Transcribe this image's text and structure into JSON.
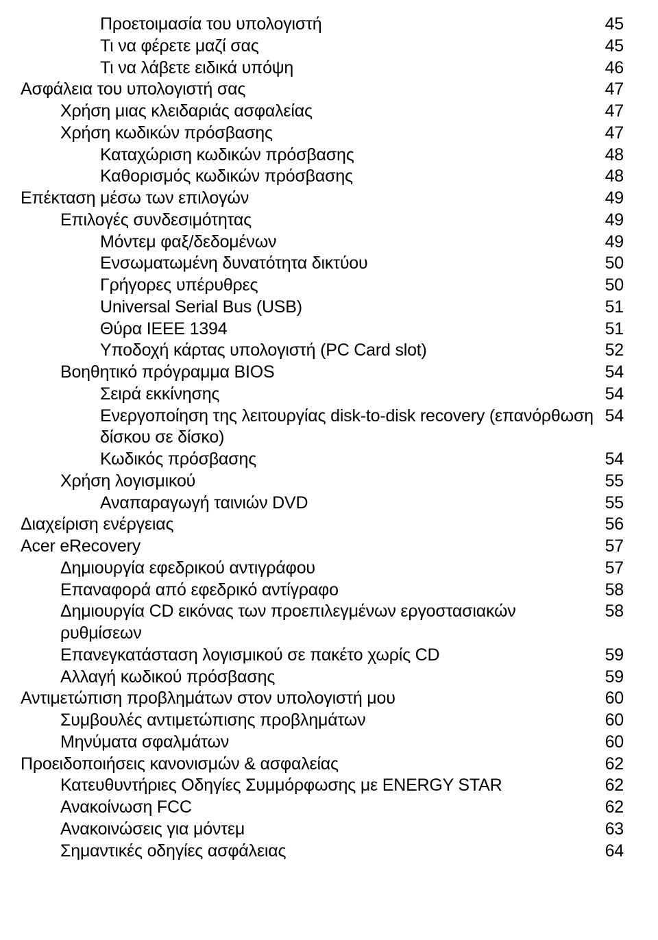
{
  "toc": [
    {
      "indent": 2,
      "title": "Προετοιμασία του υπολογιστή",
      "page": "45"
    },
    {
      "indent": 2,
      "title": "Τι να φέρετε μαζί σας",
      "page": "45"
    },
    {
      "indent": 2,
      "title": "Τι να λάβετε ειδικά υπόψη",
      "page": "46"
    },
    {
      "indent": 0,
      "title": "Ασφάλεια του υπολογιστή σας",
      "page": "47"
    },
    {
      "indent": 1,
      "title": "Χρήση μιας κλειδαριάς ασφαλείας",
      "page": "47"
    },
    {
      "indent": 1,
      "title": "Χρήση κωδικών πρόσβασης",
      "page": "47"
    },
    {
      "indent": 2,
      "title": "Καταχώριση κωδικών πρόσβασης",
      "page": "48"
    },
    {
      "indent": 2,
      "title": "Καθορισμός κωδικών πρόσβασης",
      "page": "48"
    },
    {
      "indent": 0,
      "title": "Επέκταση μέσω των επιλογών",
      "page": "49"
    },
    {
      "indent": 1,
      "title": "Επιλογές συνδεσιμότητας",
      "page": "49"
    },
    {
      "indent": 2,
      "title": "Μόντεμ φαξ/δεδομένων",
      "page": "49"
    },
    {
      "indent": 2,
      "title": "Ενσωματωμένη δυνατότητα δικτύου",
      "page": "50"
    },
    {
      "indent": 2,
      "title": "Γρήγορες υπέρυθρες",
      "page": "50"
    },
    {
      "indent": 2,
      "title": "Universal Serial Bus (USB)",
      "page": "51"
    },
    {
      "indent": 2,
      "title": "Θύρα IEEE 1394",
      "page": "51"
    },
    {
      "indent": 2,
      "title": "Υποδοχή κάρτας υπολογιστή (PC Card slot)",
      "page": "52"
    },
    {
      "indent": 1,
      "title": "Βοηθητικό πρόγραμμα BIOS",
      "page": "54"
    },
    {
      "indent": 2,
      "title": "Σειρά εκκίνησης",
      "page": "54"
    },
    {
      "indent": 2,
      "title": "Ενεργοποίηση της λειτουργίας disk-to-disk recovery (επανόρθωση δίσκου σε δίσκο)",
      "page": "54"
    },
    {
      "indent": 2,
      "title": "Κωδικός πρόσβασης",
      "page": "54"
    },
    {
      "indent": 1,
      "title": "Χρήση λογισμικού",
      "page": "55"
    },
    {
      "indent": 2,
      "title": "Αναπαραγωγή ταινιών DVD",
      "page": "55"
    },
    {
      "indent": 0,
      "title": "Διαχείριση ενέργειας",
      "page": "56"
    },
    {
      "indent": 0,
      "title": "Acer eRecovery",
      "page": "57"
    },
    {
      "indent": 1,
      "title": "Δημιουργία εφεδρικού αντιγράφου",
      "page": "57"
    },
    {
      "indent": 1,
      "title": "Επαναφορά από εφεδρικό αντίγραφο",
      "page": "58"
    },
    {
      "indent": 1,
      "title": "Δημιουργία CD εικόνας των προεπιλεγμένων εργοστασιακών ρυθμίσεων",
      "page": "58"
    },
    {
      "indent": 1,
      "title": "Επανεγκατάσταση λογισμικού σε πακέτο χωρίς CD",
      "page": "59"
    },
    {
      "indent": 1,
      "title": "Αλλαγή κωδικού πρόσβασης",
      "page": "59"
    },
    {
      "indent": 0,
      "title": "Αντιμετώπιση προβλημάτων στον υπολογιστή μου",
      "page": "60"
    },
    {
      "indent": 1,
      "title": "Συμβουλές αντιμετώπισης προβλημάτων",
      "page": "60"
    },
    {
      "indent": 1,
      "title": "Μηνύματα σφαλμάτων",
      "page": "60"
    },
    {
      "indent": 0,
      "title": "Προειδοποιήσεις κανονισμών & ασφαλείας",
      "page": "62"
    },
    {
      "indent": 1,
      "title": "Κατευθυντήριες Οδηγίες Συμμόρφωσης με ENERGY STAR",
      "page": "62"
    },
    {
      "indent": 1,
      "title": "Ανακοίνωση FCC",
      "page": "62"
    },
    {
      "indent": 1,
      "title": "Ανακοινώσεις για μόντεμ",
      "page": "63"
    },
    {
      "indent": 1,
      "title": "Σημαντικές οδηγίες ασφάλειας",
      "page": "64"
    }
  ],
  "style": {
    "indentStep": 58,
    "baseLeft": 0,
    "textColor": "#000000",
    "bgColor": "#ffffff",
    "fontSize": 25
  }
}
